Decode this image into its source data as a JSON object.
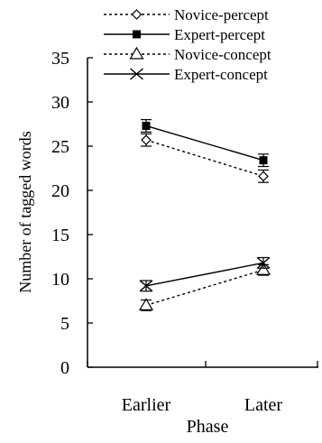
{
  "chart_data": {
    "type": "line",
    "title": "",
    "xlabel": "Phase",
    "ylabel": "Number of tagged words",
    "categories": [
      "Earlier",
      "Later"
    ],
    "ylim": [
      0,
      35
    ],
    "yticks": [
      "0",
      "5",
      "10",
      "15",
      "20",
      "25",
      "30",
      "35"
    ],
    "grid": false,
    "legend_position": "top",
    "series": [
      {
        "name": "Novice-percept",
        "values": [
          25.7,
          21.6
        ],
        "err": [
          0.7,
          0.7
        ],
        "marker": "diamond-open",
        "line": "dotted",
        "color": "#000000"
      },
      {
        "name": "Expert-percept",
        "values": [
          27.3,
          23.4
        ],
        "err": [
          0.7,
          0.7
        ],
        "marker": "square-filled",
        "line": "solid",
        "color": "#000000"
      },
      {
        "name": "Novice-concept",
        "values": [
          7.0,
          11.0
        ],
        "err": [
          0.6,
          0.6
        ],
        "marker": "triangle-open",
        "line": "dotted",
        "color": "#000000"
      },
      {
        "name": "Expert-concept",
        "values": [
          9.2,
          11.8
        ],
        "err": [
          0.6,
          0.6
        ],
        "marker": "x-cross",
        "line": "solid",
        "color": "#000000"
      }
    ]
  }
}
